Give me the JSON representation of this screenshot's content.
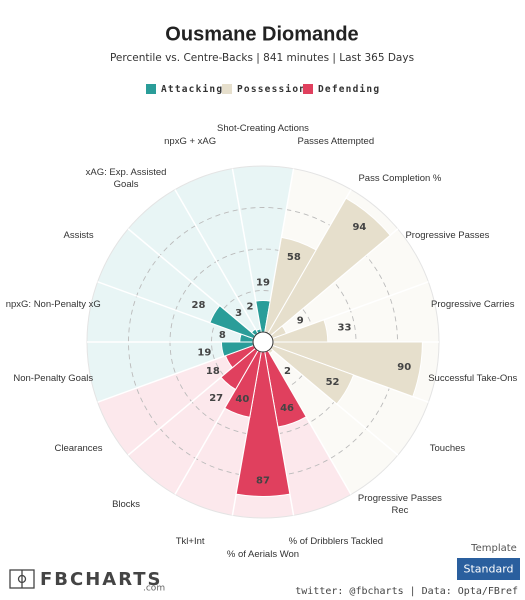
{
  "chart_data": {
    "type": "pizza",
    "title": "Ousmane Diomande",
    "subtitle": "Percentile vs. Centre-Backs | 841 minutes | Last 365 Days",
    "series": [
      {
        "name": "Attacking",
        "color": "#2a9d99",
        "background": "#e8f5f5"
      },
      {
        "name": "Possession",
        "color": "#e6dfcc",
        "background": "#fbfaf6"
      },
      {
        "name": "Defending",
        "color": "#e0405e",
        "background": "#fce8ec"
      }
    ],
    "categories": [
      "Shot-Creating Actions",
      "Passes Attempted",
      "Pass Completion %",
      "Progressive Passes",
      "Progressive Carries",
      "Successful Take-Ons",
      "Touches",
      "Progressive Passes Rec",
      "% of Dribblers Tackled",
      "% of Aerials Won",
      "Tkl+Int",
      "Blocks",
      "Clearances",
      "Non-Penalty Goals",
      "npxG: Non-Penalty xG",
      "Assists",
      "xAG: Exp. Assisted Goals",
      "npxG + xAG"
    ],
    "category_series": [
      0,
      1,
      1,
      1,
      1,
      1,
      1,
      1,
      2,
      2,
      2,
      2,
      2,
      0,
      0,
      0,
      0,
      0
    ],
    "values": [
      19,
      58,
      94,
      9,
      33,
      90,
      52,
      2,
      46,
      87,
      40,
      27,
      18,
      19,
      8,
      28,
      3,
      2
    ],
    "rlim": [
      0,
      100
    ],
    "rgrid": [
      25,
      50,
      75
    ]
  },
  "footer": {
    "template_label": "Template",
    "template": "Standard",
    "logo": "FBCHARTS",
    "logo_suffix": ".com",
    "credits": "twitter: @fbcharts | Data: Opta/FBref"
  }
}
